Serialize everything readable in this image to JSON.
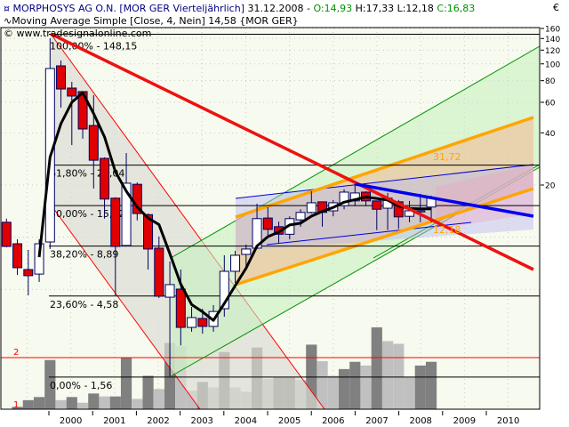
{
  "header": {
    "symbol_icon": "candlestick-icon",
    "instrument": "MORPHOSYS AG O.N. [MOR GER  Vierteljährlich]",
    "date": "31.12.2008 -",
    "open": "O:14,93",
    "high": "H:17,33",
    "low": "L:12,18",
    "close": "C:16,83",
    "indicator_icon": "wave-icon",
    "indicator": "Moving Average Simple [Close, 4, Nein] 14,58 {MOR GER}",
    "copyright": "© www.tradesignalonline.com"
  },
  "chart_data": {
    "type": "candlestick",
    "scale": "log",
    "currency": "€",
    "y_ticks": [
      160,
      140,
      120,
      100,
      80,
      60,
      40,
      20
    ],
    "ylim": [
      1.45,
      170
    ],
    "grid": true,
    "periods": "quarterly, 1999 Q1 – 2008 Q4",
    "x_labels": [
      "2000",
      "2001",
      "2002",
      "2003",
      "2004",
      "2005",
      "2006",
      "2007",
      "2008",
      "2009",
      "2010"
    ],
    "candles_ohlc": [
      [
        12.2,
        12.8,
        8.75,
        8.85
      ],
      [
        9.17,
        9.73,
        6.06,
        6.67
      ],
      [
        6.51,
        8.45,
        4.62,
        6.0
      ],
      [
        6.13,
        9.73,
        5.52,
        9.17
      ],
      [
        9.39,
        140.5,
        8.55,
        94.0
      ],
      [
        97.4,
        104.6,
        55.9,
        71.6
      ],
      [
        72.5,
        78.7,
        34.0,
        65.2
      ],
      [
        69.2,
        69.2,
        37.0,
        42.1
      ],
      [
        44.1,
        66.0,
        19.1,
        27.8
      ],
      [
        28.5,
        28.9,
        12.8,
        16.6
      ],
      [
        16.8,
        17.0,
        4.62,
        8.85
      ],
      [
        8.96,
        30.6,
        8.85,
        20.5
      ],
      [
        20.2,
        20.7,
        12.5,
        13.7
      ],
      [
        13.5,
        13.7,
        6.51,
        8.55
      ],
      [
        8.65,
        10.1,
        4.46,
        4.57
      ],
      [
        4.51,
        7.24,
        1.58,
        5.33
      ],
      [
        5.02,
        6.51,
        2.38,
        3.02
      ],
      [
        3.02,
        3.96,
        2.85,
        3.44
      ],
      [
        3.4,
        3.87,
        2.78,
        3.06
      ],
      [
        3.06,
        4.06,
        2.85,
        3.73
      ],
      [
        3.87,
        7.87,
        3.48,
        6.36
      ],
      [
        6.36,
        8.35,
        5.45,
        7.87
      ],
      [
        7.96,
        9.07,
        6.51,
        8.55
      ],
      [
        8.65,
        15.6,
        8.55,
        12.8
      ],
      [
        12.9,
        14.9,
        10.3,
        11.1
      ],
      [
        11.5,
        12.3,
        9.28,
        10.4
      ],
      [
        10.4,
        13.2,
        9.73,
        12.8
      ],
      [
        12.6,
        14.5,
        11.5,
        13.9
      ],
      [
        13.9,
        18.4,
        13.7,
        15.8
      ],
      [
        16.0,
        16.0,
        11.5,
        13.9
      ],
      [
        14.2,
        16.4,
        13.2,
        15.8
      ],
      [
        15.2,
        18.9,
        14.5,
        18.2
      ],
      [
        16.2,
        20.7,
        15.1,
        18.0
      ],
      [
        18.2,
        18.4,
        15.1,
        16.2
      ],
      [
        16.2,
        16.2,
        11.0,
        14.5
      ],
      [
        14.7,
        18.0,
        11.0,
        16.8
      ],
      [
        16.0,
        16.4,
        11.2,
        13.1
      ],
      [
        13.2,
        16.2,
        12.2,
        14.2
      ],
      [
        14.0,
        17.8,
        12.2,
        14.2
      ],
      [
        14.93,
        17.33,
        12.18,
        16.83
      ]
    ],
    "moving_average_period": 4,
    "volume": {
      "ticks": [
        "1",
        "2"
      ],
      "values": [
        0.94,
        0.97,
        1.07,
        1.12,
        1.93,
        1.07,
        1.12,
        1.03,
        1.18,
        1.13,
        1.13,
        1.99,
        1.09,
        1.53,
        1.26,
        2.48,
        2.36,
        1.23,
        1.4,
        1.29,
        2.17,
        1.29,
        1.21,
        2.32,
        1.46,
        1.5,
        1.5,
        1.44,
        2.42,
        1.9,
        1.53,
        1.69,
        1.88,
        1.78,
        3.12,
        2.55,
        2.45,
        1.5,
        1.78,
        1.88
      ],
      "shade": [
        "d",
        "d",
        "d",
        "d",
        "d",
        "l",
        "d",
        "l",
        "d",
        "l",
        "d",
        "d",
        "l",
        "d",
        "l",
        "d",
        "l",
        "l",
        "d",
        "l",
        "d",
        "l",
        "l",
        "d",
        "l",
        "d",
        "d",
        "l",
        "d",
        "l",
        "l",
        "d",
        "d",
        "l",
        "d",
        "l",
        "l",
        "l",
        "d",
        "d"
      ]
    },
    "fibonacci": [
      {
        "label": "100,00% - 148,15",
        "value": 148.15
      },
      {
        "label": "61,80% - 26,04",
        "value": 26.04
      },
      {
        "label": "50,00% - 15,22",
        "value": 15.22
      },
      {
        "label": "38,20% - 8,89",
        "value": 8.89
      },
      {
        "label": "23,60% - 4,58",
        "value": 4.58
      },
      {
        "label": "0,00% - 1,56",
        "value": 1.56
      }
    ],
    "channel_labels": {
      "upper": "31,72",
      "lower": "12,18"
    },
    "colors": {
      "down": "#e00000",
      "up": "#ffffff",
      "candle_border": "#000060",
      "ma": "#000000",
      "trend_red": "#ee1111",
      "trend_blue": "#0000ee",
      "channel_orange": "#ffa500",
      "background": "#f7faee"
    }
  }
}
